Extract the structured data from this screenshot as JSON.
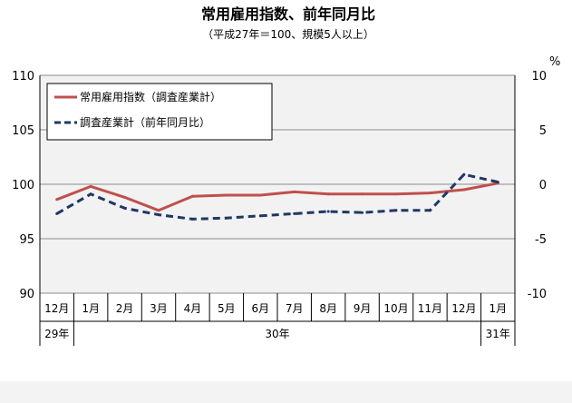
{
  "chart_data": {
    "type": "line",
    "title": "常用雇用指数、前年同月比",
    "subtitle": "（平成27年＝100、規模5人以上）",
    "left_axis": {
      "ylim": [
        90,
        110
      ],
      "ticks": [
        "90",
        "95",
        "100",
        "105",
        "110"
      ]
    },
    "right_axis": {
      "unit": "%",
      "ylim": [
        -10,
        10
      ],
      "ticks": [
        "-10",
        "-5",
        "0",
        "5",
        "10"
      ]
    },
    "categories": [
      "12月",
      "1月",
      "2月",
      "3月",
      "4月",
      "5月",
      "6月",
      "7月",
      "8月",
      "9月",
      "10月",
      "11月",
      "12月",
      "1月"
    ],
    "year_labels": [
      "29年",
      "30年",
      "31年"
    ],
    "grid": true,
    "legend_position": "top-left",
    "series": [
      {
        "name": "常用雇用指数（調査産業計）",
        "axis": "left",
        "style": "solid",
        "color": "#c0504d",
        "values": [
          98.6,
          99.8,
          98.8,
          97.6,
          98.9,
          99.0,
          99.0,
          99.3,
          99.1,
          99.1,
          99.1,
          99.2,
          99.5,
          100.1
        ]
      },
      {
        "name": "調査産業計（前年同月比）",
        "axis": "right",
        "style": "dashed",
        "color": "#1f3864",
        "values": [
          -2.7,
          -0.9,
          -2.2,
          -2.8,
          -3.2,
          -3.1,
          -2.9,
          -2.7,
          -2.5,
          -2.6,
          -2.4,
          -2.4,
          0.9,
          0.2
        ]
      }
    ]
  }
}
